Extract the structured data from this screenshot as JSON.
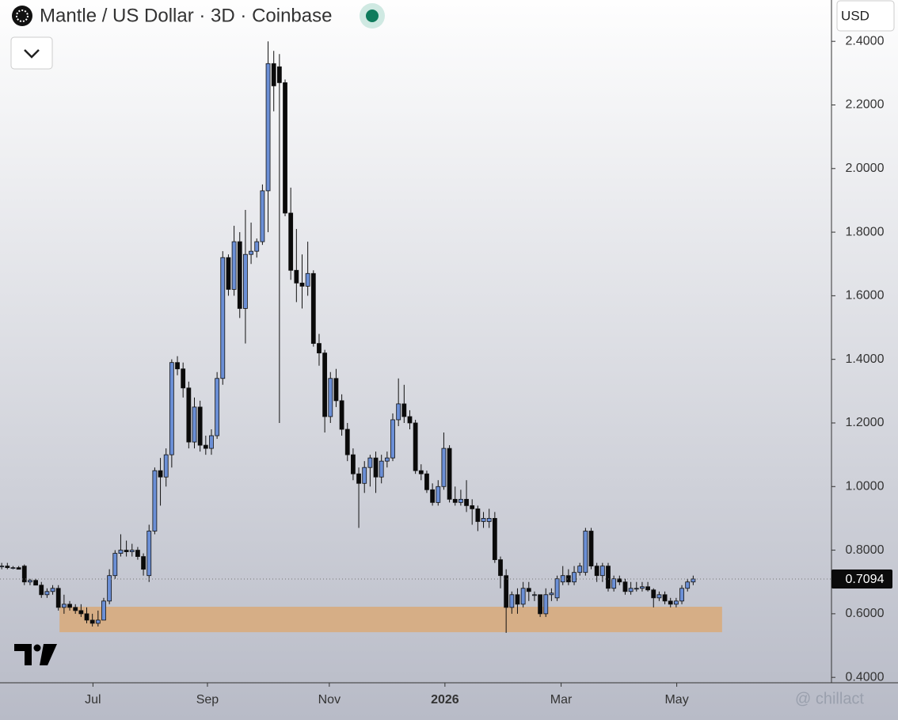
{
  "chart_data": {
    "type": "candlestick",
    "title": "Mantle / US Dollar · 3D · Coinbase",
    "currency": "USD",
    "up_color": "#6b8fd6",
    "down_color": "#0a0a0a",
    "categories": [
      null,
      null,
      null,
      null,
      null,
      null,
      null,
      null,
      null,
      null,
      null,
      null,
      null,
      null,
      null,
      null,
      null,
      null,
      null,
      null,
      null,
      null,
      null,
      null,
      null,
      null,
      null,
      null,
      null,
      null,
      null,
      null,
      null,
      null,
      null,
      null,
      null,
      null,
      null,
      null,
      null,
      null,
      null,
      null,
      null,
      null,
      null,
      null,
      null,
      null,
      null,
      null,
      null,
      null,
      null,
      null,
      null,
      null,
      null,
      null,
      null,
      null,
      null,
      null,
      null,
      null,
      null,
      null,
      null,
      null,
      null,
      null,
      null,
      null,
      null,
      null,
      null,
      null,
      null,
      null,
      null,
      null,
      null,
      null,
      null,
      null,
      null,
      null,
      null,
      null,
      null,
      null,
      null,
      null,
      null,
      null,
      null,
      null,
      null,
      null,
      null,
      null,
      null,
      null,
      null,
      null,
      null,
      null,
      null,
      null,
      null,
      null,
      null,
      null,
      null,
      null,
      null,
      null,
      null,
      null,
      null,
      null,
      null
    ],
    "open": [
      0.75,
      0.75,
      0.745,
      0.745,
      0.75,
      0.7,
      0.705,
      0.69,
      0.66,
      0.67,
      0.68,
      0.62,
      0.63,
      0.62,
      0.61,
      0.6,
      0.58,
      0.57,
      0.58,
      0.64,
      0.72,
      0.79,
      0.8,
      0.795,
      0.8,
      0.78,
      0.72,
      0.86,
      1.05,
      1.03,
      1.1,
      1.39,
      1.37,
      1.31,
      1.14,
      1.25,
      1.13,
      1.12,
      1.16,
      1.34,
      1.72,
      1.62,
      1.77,
      1.56,
      1.73,
      1.74,
      1.77,
      1.93,
      2.33,
      2.32,
      2.27,
      1.86,
      1.68,
      1.64,
      1.63,
      1.67,
      1.45,
      1.42,
      1.22,
      1.34,
      1.27,
      1.18,
      1.1,
      1.04,
      1.01,
      1.06,
      1.09,
      1.03,
      1.08,
      1.09,
      1.21,
      1.26,
      1.22,
      1.2,
      1.05,
      1.04,
      0.99,
      0.95,
      1.0,
      1.12,
      0.96,
      0.95,
      0.96,
      0.94,
      0.93,
      0.89,
      0.89,
      0.9,
      0.77,
      0.72,
      0.62,
      0.66,
      0.63,
      0.68,
      0.66,
      0.66,
      0.6,
      0.66,
      0.65,
      0.7,
      0.72,
      0.7,
      0.73,
      0.73,
      0.86,
      0.75,
      0.72,
      0.75,
      0.68,
      0.71,
      0.7,
      0.67,
      0.68,
      0.68,
      0.685,
      0.675,
      0.65,
      0.66,
      0.64,
      0.63,
      0.64,
      0.68,
      0.7
    ],
    "high": [
      0.76,
      0.76,
      0.75,
      0.75,
      0.755,
      0.71,
      0.71,
      0.7,
      0.68,
      0.69,
      0.69,
      0.66,
      0.64,
      0.63,
      0.63,
      0.62,
      0.6,
      0.61,
      0.65,
      0.74,
      0.8,
      0.85,
      0.83,
      0.82,
      0.81,
      0.79,
      0.88,
      1.06,
      1.09,
      1.12,
      1.4,
      1.41,
      1.39,
      1.33,
      1.28,
      1.27,
      1.16,
      1.18,
      1.36,
      1.74,
      1.73,
      1.82,
      1.8,
      1.87,
      1.83,
      1.78,
      1.95,
      2.4,
      2.37,
      2.36,
      2.28,
      1.94,
      1.81,
      1.73,
      1.77,
      1.68,
      1.48,
      1.43,
      1.36,
      1.37,
      1.29,
      1.2,
      1.12,
      1.06,
      1.08,
      1.1,
      1.11,
      1.1,
      1.11,
      1.23,
      1.34,
      1.32,
      1.24,
      1.21,
      1.07,
      1.05,
      1.01,
      1.02,
      1.17,
      1.13,
      1.0,
      0.99,
      1.02,
      0.96,
      0.94,
      0.92,
      0.93,
      0.92,
      0.78,
      0.74,
      0.67,
      0.68,
      0.7,
      0.7,
      0.67,
      0.66,
      0.68,
      0.68,
      0.72,
      0.75,
      0.74,
      0.75,
      0.76,
      0.87,
      0.87,
      0.76,
      0.76,
      0.76,
      0.72,
      0.72,
      0.71,
      0.7,
      0.7,
      0.7,
      0.7,
      0.68,
      0.67,
      0.67,
      0.65,
      0.65,
      0.69,
      0.71,
      0.72
    ],
    "low": [
      0.74,
      0.74,
      0.74,
      0.74,
      0.69,
      0.69,
      0.69,
      0.65,
      0.65,
      0.66,
      0.61,
      0.6,
      0.61,
      0.6,
      0.59,
      0.57,
      0.56,
      0.56,
      0.58,
      0.63,
      0.71,
      0.78,
      0.78,
      0.78,
      0.77,
      0.72,
      0.7,
      0.85,
      0.94,
      1.0,
      1.06,
      1.35,
      1.28,
      1.12,
      1.12,
      1.11,
      1.1,
      1.1,
      1.15,
      1.32,
      1.6,
      1.6,
      1.53,
      1.45,
      1.7,
      1.72,
      1.76,
      1.8,
      2.18,
      1.2,
      1.85,
      1.65,
      1.58,
      1.56,
      1.6,
      1.44,
      1.38,
      1.17,
      1.2,
      1.25,
      1.16,
      1.08,
      1.02,
      0.87,
      0.98,
      1.0,
      0.98,
      1.01,
      1.06,
      1.08,
      1.19,
      1.2,
      1.18,
      1.04,
      1.02,
      0.98,
      0.94,
      0.94,
      0.99,
      0.95,
      0.94,
      0.94,
      0.92,
      0.88,
      0.86,
      0.87,
      0.87,
      0.76,
      0.68,
      0.54,
      0.6,
      0.6,
      0.62,
      0.64,
      0.64,
      0.59,
      0.59,
      0.64,
      0.64,
      0.69,
      0.69,
      0.69,
      0.72,
      0.72,
      0.74,
      0.7,
      0.7,
      0.67,
      0.67,
      0.69,
      0.66,
      0.66,
      0.67,
      0.67,
      0.67,
      0.62,
      0.64,
      0.63,
      0.62,
      0.62,
      0.63,
      0.67,
      0.69
    ],
    "close": [
      0.75,
      0.745,
      0.745,
      0.74,
      0.7,
      0.705,
      0.69,
      0.66,
      0.67,
      0.68,
      0.62,
      0.63,
      0.62,
      0.61,
      0.6,
      0.58,
      0.57,
      0.58,
      0.64,
      0.72,
      0.79,
      0.8,
      0.795,
      0.8,
      0.78,
      0.74,
      0.86,
      1.05,
      1.03,
      1.1,
      1.39,
      1.37,
      1.31,
      1.14,
      1.25,
      1.13,
      1.12,
      1.16,
      1.34,
      1.72,
      1.62,
      1.77,
      1.56,
      1.73,
      1.74,
      1.77,
      1.93,
      2.33,
      2.26,
      2.27,
      1.86,
      1.68,
      1.64,
      1.63,
      1.67,
      1.45,
      1.42,
      1.22,
      1.34,
      1.27,
      1.18,
      1.1,
      1.04,
      1.01,
      1.06,
      1.09,
      1.03,
      1.08,
      1.09,
      1.21,
      1.26,
      1.22,
      1.2,
      1.05,
      1.04,
      0.99,
      0.95,
      1.0,
      1.12,
      0.96,
      0.95,
      0.96,
      0.94,
      0.93,
      0.89,
      0.9,
      0.9,
      0.77,
      0.72,
      0.62,
      0.66,
      0.63,
      0.68,
      0.67,
      0.66,
      0.6,
      0.66,
      0.665,
      0.71,
      0.72,
      0.7,
      0.73,
      0.75,
      0.86,
      0.75,
      0.72,
      0.75,
      0.68,
      0.71,
      0.7,
      0.67,
      0.68,
      0.68,
      0.685,
      0.675,
      0.65,
      0.66,
      0.64,
      0.63,
      0.64,
      0.68,
      0.7,
      0.7094
    ],
    "last_price": 0.7094,
    "zone": {
      "low": 0.542,
      "high": 0.622,
      "start": 10.2,
      "end": 127.1,
      "color": "#d6ae86"
    },
    "xlim": [
      -0.3,
      146.4
    ],
    "xticks": [
      {
        "value": 16.1,
        "label": "Jul"
      },
      {
        "value": 36.3,
        "label": "Sep"
      },
      {
        "value": 57.8,
        "label": "Nov"
      },
      {
        "value": 78.2,
        "label": "2026",
        "bold": true
      },
      {
        "value": 98.7,
        "label": "Mar"
      },
      {
        "value": 119.1,
        "label": "May"
      }
    ],
    "ylim": [
      0.383,
      2.53
    ],
    "yticks": [
      {
        "value": 0.4,
        "label": "0.4000"
      },
      {
        "value": 0.6,
        "label": "0.6000"
      },
      {
        "value": 0.8,
        "label": "0.8000"
      },
      {
        "value": 1.0,
        "label": "1.0000"
      },
      {
        "value": 1.2,
        "label": "1.2000"
      },
      {
        "value": 1.4,
        "label": "1.4000"
      },
      {
        "value": 1.6,
        "label": "1.6000"
      },
      {
        "value": 1.8,
        "label": "1.8000"
      },
      {
        "value": 2.0,
        "label": "2.0000"
      },
      {
        "value": 2.2,
        "label": "2.2000"
      },
      {
        "value": 2.4,
        "label": "2.4000"
      }
    ],
    "watermark": "@ chillact"
  }
}
